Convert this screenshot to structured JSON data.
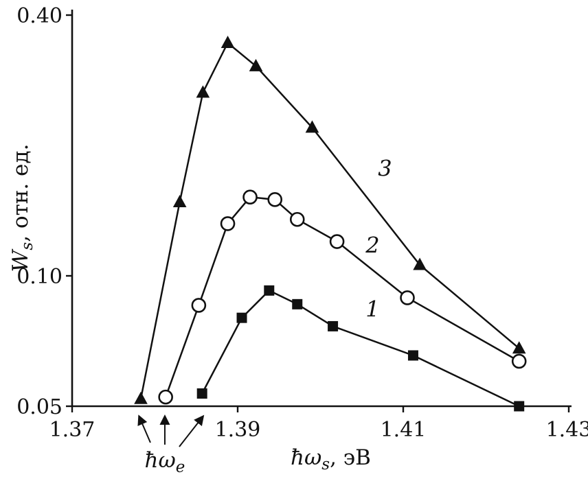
{
  "chart_data": {
    "type": "line",
    "title": "",
    "xlabel": {
      "pre": "ħω",
      "sub": "s",
      "post": ", эВ"
    },
    "ylabel": {
      "pre": "W",
      "sub": "s",
      "post": ", отн. ед."
    },
    "x_scale": "linear",
    "y_scale": "log",
    "xlim": [
      1.37,
      1.43
    ],
    "ylim": [
      0.05,
      0.4
    ],
    "grid": false,
    "legend": "none",
    "x_ticks": [
      {
        "value": 1.37,
        "label": "1.37"
      },
      {
        "value": 1.39,
        "label": "1.39"
      },
      {
        "value": 1.41,
        "label": "1.41"
      },
      {
        "value": 1.43,
        "label": "1.43"
      }
    ],
    "y_ticks": [
      {
        "value": 0.05,
        "label": "0.05"
      },
      {
        "value": 0.1,
        "label": "0.10"
      },
      {
        "value": 0.4,
        "label": "0.40"
      }
    ],
    "line_color": "#111111",
    "series": [
      {
        "name": "1",
        "marker": "filled-square",
        "label_pos": {
          "x": 1.4063,
          "y": 0.0805
        },
        "points": [
          [
            1.3857,
            0.0535
          ],
          [
            1.3905,
            0.08
          ],
          [
            1.3938,
            0.0925
          ],
          [
            1.3972,
            0.086
          ],
          [
            1.4015,
            0.0765
          ],
          [
            1.4112,
            0.0655
          ],
          [
            1.424,
            0.05
          ]
        ]
      },
      {
        "name": "2",
        "marker": "open-circle",
        "label_pos": {
          "x": 1.4063,
          "y": 0.113
        },
        "points": [
          [
            1.3813,
            0.0525
          ],
          [
            1.3853,
            0.0855
          ],
          [
            1.3888,
            0.132
          ],
          [
            1.3915,
            0.152
          ],
          [
            1.3945,
            0.15
          ],
          [
            1.3972,
            0.135
          ],
          [
            1.402,
            0.12
          ],
          [
            1.4105,
            0.089
          ],
          [
            1.424,
            0.0635
          ]
        ]
      },
      {
        "name": "3",
        "marker": "filled-triangle",
        "label_pos": {
          "x": 1.4078,
          "y": 0.17
        },
        "points": [
          [
            1.3783,
            0.052
          ],
          [
            1.383,
            0.148
          ],
          [
            1.3858,
            0.265
          ],
          [
            1.3888,
            0.345
          ],
          [
            1.3922,
            0.305
          ],
          [
            1.399,
            0.22
          ],
          [
            1.412,
            0.106
          ],
          [
            1.424,
            0.068
          ]
        ]
      }
    ],
    "excitation": {
      "label": {
        "pre": "ħω",
        "sub": "e"
      },
      "label_anchor_x": 1.3812,
      "arrow_targets_x": [
        1.3781,
        1.3812,
        1.3858
      ]
    }
  }
}
